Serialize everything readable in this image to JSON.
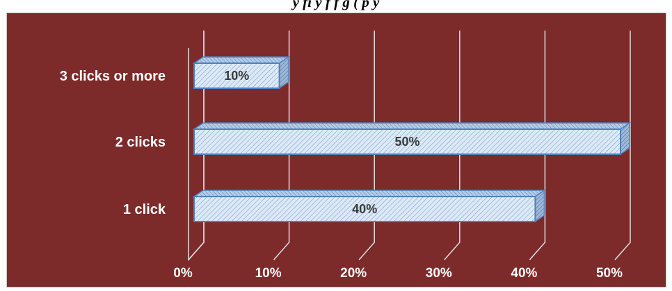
{
  "caption": "y            fi            y            f            f                              g                     (              p            y",
  "colors": {
    "background": "#7d2a2a",
    "bar_fill": "#dceaf7",
    "bar_edge": "#4f81bd",
    "grid": "#e0e0e0",
    "label": "#ffffff",
    "value_label": "#3a3a3a"
  },
  "chart_data": {
    "type": "bar",
    "orientation": "horizontal",
    "style": "3d",
    "categories": [
      "3 clicks or more",
      "2 clicks",
      "1 click"
    ],
    "values": [
      10,
      50,
      40
    ],
    "data_labels": [
      "10%",
      "50%",
      "40%"
    ],
    "xlim": [
      0,
      50
    ],
    "x_ticks": [
      0,
      10,
      20,
      30,
      40,
      50
    ],
    "x_tick_labels": [
      "0%",
      "10%",
      "20%",
      "30%",
      "40%",
      "50%"
    ],
    "grid": true,
    "legend": "none"
  }
}
